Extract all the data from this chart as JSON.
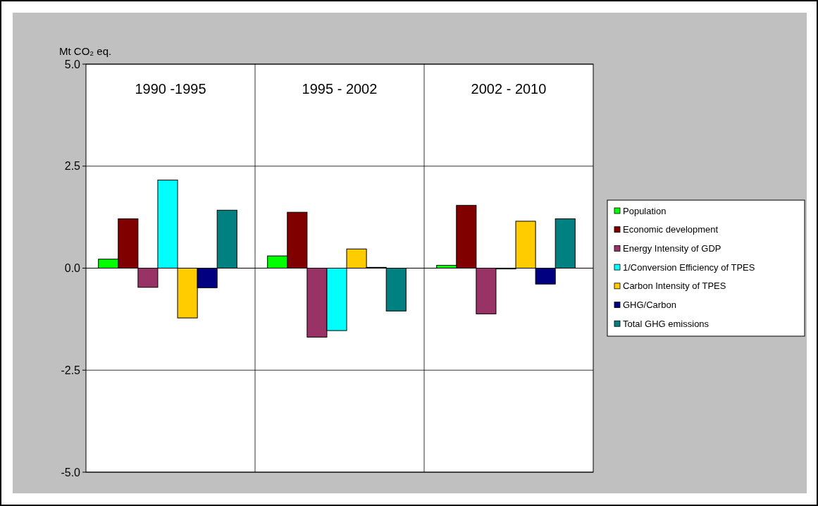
{
  "chart_data": {
    "type": "bar",
    "ylabel": "Mt CO₂ eq.",
    "categories": [
      "1990 -1995",
      "1995 - 2002",
      "2002 - 2010"
    ],
    "ylim": [
      -5,
      5
    ],
    "yticks": [
      {
        "value": -5,
        "label": "-5.0"
      },
      {
        "value": -2.5,
        "label": "-2.5"
      },
      {
        "value": 0,
        "label": "0.0"
      },
      {
        "value": 2.5,
        "label": "2.5"
      },
      {
        "value": 5,
        "label": "5.0"
      }
    ],
    "grid": true,
    "legend": "right",
    "series": [
      {
        "name": "Population",
        "color": "#00ff00",
        "values": [
          0.22,
          0.3,
          0.07
        ]
      },
      {
        "name": "Economic development",
        "color": "#800000",
        "values": [
          1.21,
          1.37,
          1.54
        ]
      },
      {
        "name": "Energy Intensity of GDP",
        "color": "#993366",
        "values": [
          -0.47,
          -1.69,
          -1.12
        ]
      },
      {
        "name": "1/Conversion Efficiency of TPES",
        "color": "#00ffff",
        "values": [
          2.16,
          -1.53,
          -0.02
        ]
      },
      {
        "name": "Carbon Intensity of TPES",
        "color": "#ffcc00",
        "values": [
          -1.22,
          0.47,
          1.15
        ]
      },
      {
        "name": "GHG/Carbon",
        "color": "#000080",
        "values": [
          -0.48,
          0.02,
          -0.39
        ]
      },
      {
        "name": "Total GHG emissions",
        "color": "#008080",
        "values": [
          1.42,
          -1.05,
          1.21
        ]
      }
    ]
  }
}
